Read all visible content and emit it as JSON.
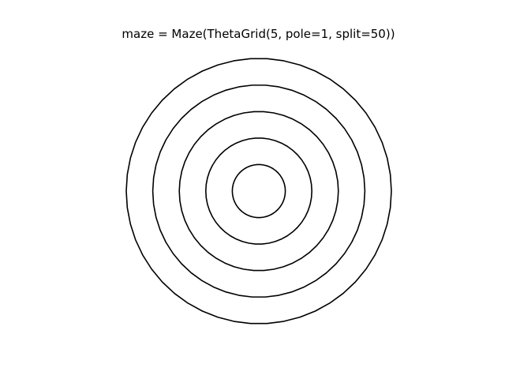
{
  "title": "maze = Maze(ThetaGrid(5, pole=1, split=50))",
  "maze": {
    "grid": "ThetaGrid",
    "rings": 5,
    "pole": 1,
    "split": 50
  },
  "colors": {
    "background": "#ffffff",
    "wall": "#000000"
  }
}
